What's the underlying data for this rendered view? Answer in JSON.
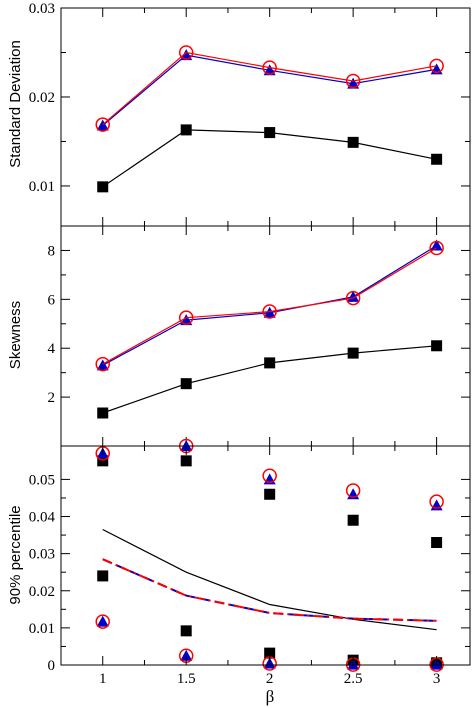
{
  "chart_data": [
    {
      "type": "scatter",
      "panel": "top",
      "ylabel": "Standard Deviation",
      "ylim": [
        0.0055,
        0.03
      ],
      "yticks": [
        0.01,
        0.02,
        0.03
      ],
      "ytick_labels": [
        "0.01",
        "0.02",
        "0.03"
      ],
      "xlim": [
        0.75,
        3.2
      ],
      "x": [
        1,
        1.5,
        2,
        2.5,
        3
      ],
      "series": [
        {
          "marker": "square",
          "line": "solid",
          "color": "#000000",
          "values": [
            0.0099,
            0.0163,
            0.016,
            0.0149,
            0.013
          ]
        },
        {
          "marker": "triangle",
          "line": "solid",
          "color": "#0000cc",
          "values": [
            0.0168,
            0.0247,
            0.023,
            0.0215,
            0.0231
          ]
        },
        {
          "marker": "circle-open",
          "line": "solid",
          "color": "#ff0000",
          "values": [
            0.0169,
            0.025,
            0.0233,
            0.0218,
            0.0235
          ]
        }
      ]
    },
    {
      "type": "scatter",
      "panel": "middle",
      "ylabel": "Skewness",
      "ylim": [
        0,
        9
      ],
      "yticks": [
        2,
        4,
        6,
        8
      ],
      "ytick_labels": [
        "2",
        "4",
        "6",
        "8"
      ],
      "xlim": [
        0.75,
        3.2
      ],
      "x": [
        1,
        1.5,
        2,
        2.5,
        3
      ],
      "series": [
        {
          "marker": "square",
          "line": "solid",
          "color": "#000000",
          "values": [
            1.35,
            2.55,
            3.4,
            3.8,
            4.1
          ]
        },
        {
          "marker": "triangle",
          "line": "solid",
          "color": "#0000cc",
          "values": [
            3.3,
            5.15,
            5.45,
            6.1,
            8.2
          ]
        },
        {
          "marker": "circle-open",
          "line": "solid",
          "color": "#ff0000",
          "values": [
            3.35,
            5.25,
            5.5,
            6.05,
            8.1
          ]
        }
      ]
    },
    {
      "type": "scatter",
      "panel": "bottom",
      "ylabel": "90% percentile",
      "xlabel": "β",
      "ylim": [
        0,
        0.059
      ],
      "yticks": [
        0,
        0.01,
        0.02,
        0.03,
        0.04,
        0.05
      ],
      "ytick_labels": [
        "0",
        "0.01",
        "0.02",
        "0.03",
        "0.04",
        "0.05"
      ],
      "xlim": [
        0.75,
        3.2
      ],
      "xticks": [
        1,
        1.5,
        2,
        2.5,
        3
      ],
      "xtick_labels": [
        "1",
        "1.5",
        "2",
        "2.5",
        "3"
      ],
      "x": [
        1,
        1.5,
        2,
        2.5,
        3
      ],
      "lines": [
        {
          "style": "solid",
          "color": "#000000",
          "values": [
            0.0365,
            0.025,
            0.0163,
            0.0123,
            0.0095
          ]
        },
        {
          "style": "dashed",
          "color": "#0000cc",
          "values": [
            0.0285,
            0.0187,
            0.014,
            0.0125,
            0.0119
          ]
        },
        {
          "style": "dash-dot",
          "color": "#ff0000",
          "values": [
            0.0285,
            0.0187,
            0.014,
            0.0125,
            0.0119
          ]
        }
      ],
      "upper_points": [
        {
          "marker": "square",
          "color": "#000000",
          "values": [
            0.055,
            0.055,
            0.046,
            0.039,
            0.033
          ]
        },
        {
          "marker": "triangle",
          "color": "#0000cc",
          "values": [
            0.057,
            0.059,
            0.05,
            0.046,
            0.043
          ]
        },
        {
          "marker": "circle-open",
          "color": "#ff0000",
          "values": [
            0.057,
            0.059,
            0.051,
            0.047,
            0.044
          ]
        }
      ],
      "lower_points": [
        {
          "marker": "square",
          "color": "#000000",
          "values": [
            0.024,
            0.0092,
            0.0032,
            0.0013,
            0.0006
          ]
        },
        {
          "marker": "triangle",
          "color": "#0000cc",
          "values": [
            0.0117,
            0.0025,
            0.0004,
            0.0001,
            0.0001
          ]
        },
        {
          "marker": "circle-open",
          "color": "#ff0000",
          "values": [
            0.0117,
            0.0025,
            0.0004,
            0.0001,
            0.0001
          ]
        }
      ]
    }
  ]
}
